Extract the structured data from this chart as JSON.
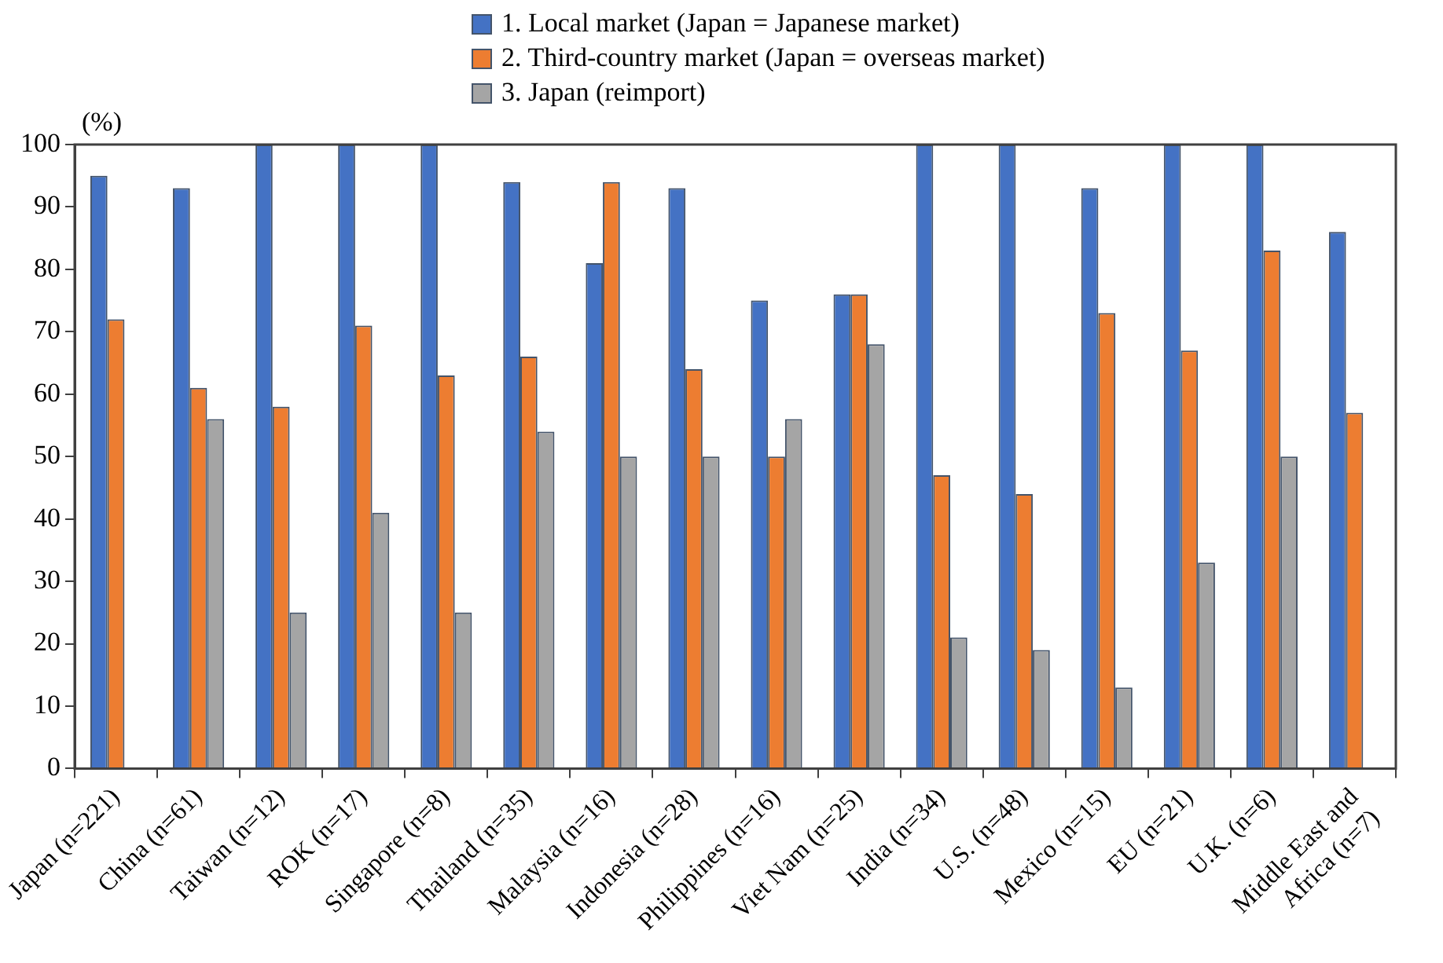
{
  "chart_data": {
    "type": "bar",
    "ylabel": "(%)",
    "categories": [
      "Japan (n=221)",
      "China (n=61)",
      "Taiwan (n=12)",
      "ROK (n=17)",
      "Singapore (n=8)",
      "Thailand (n=35)",
      "Malaysia (n=16)",
      "Indonesia (n=28)",
      "Philippines (n=16)",
      "Viet Nam (n=25)",
      "India (n=34)",
      "U.S. (n=48)",
      "Mexico (n=15)",
      "EU (n=21)",
      "U.K. (n=6)",
      "Middle East and\nAfrica (n=7)"
    ],
    "series": [
      {
        "name": "1. Local market (Japan = Japanese market)",
        "color": "#4472c4",
        "values": [
          95,
          93,
          100,
          100,
          100,
          94,
          81,
          93,
          75,
          76,
          100,
          100,
          93,
          100,
          100,
          86
        ]
      },
      {
        "name": "2. Third-country market (Japan = overseas market)",
        "color": "#ed7d31",
        "values": [
          72,
          61,
          58,
          71,
          63,
          66,
          94,
          64,
          50,
          76,
          47,
          44,
          73,
          67,
          83,
          57
        ]
      },
      {
        "name": "3. Japan (reimport)",
        "color": "#a5a5a5",
        "values": [
          null,
          56,
          25,
          41,
          25,
          54,
          50,
          50,
          56,
          68,
          21,
          19,
          13,
          33,
          50,
          null
        ]
      }
    ],
    "ylim": [
      0,
      100
    ],
    "yticks": [
      0,
      10,
      20,
      30,
      40,
      50,
      60,
      70,
      80,
      90,
      100
    ],
    "grid": false,
    "legend": "top"
  }
}
